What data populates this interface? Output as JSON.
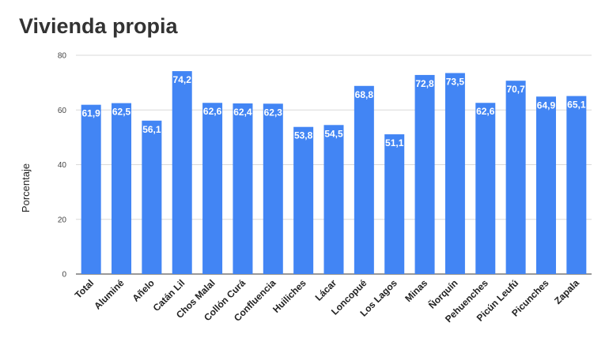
{
  "chart_data": {
    "type": "bar",
    "title": "Vivienda propia",
    "xlabel": "",
    "ylabel": "Porcentaje",
    "ylim": [
      0,
      80
    ],
    "yticks": [
      0,
      20,
      40,
      60,
      80
    ],
    "grid": true,
    "legend": "none",
    "bar_color": "#4285f4",
    "categories": [
      "Total",
      "Aluminé",
      "Añelo",
      "Catán Lil",
      "Chos Malal",
      "Collón Curá",
      "Confluencia",
      "Huiliches",
      "Lácar",
      "Loncopué",
      "Los Lagos",
      "Minas",
      "Ñorquín",
      "Pehuenches",
      "Picún Leufú",
      "Picunches",
      "Zapala"
    ],
    "values": [
      61.9,
      62.5,
      56.1,
      74.2,
      62.6,
      62.4,
      62.3,
      53.8,
      54.5,
      68.8,
      51.1,
      72.8,
      73.5,
      62.6,
      70.7,
      64.9,
      65.1
    ],
    "value_labels": [
      "61,9",
      "62,5",
      "56,1",
      "74,2",
      "62,6",
      "62,4",
      "62,3",
      "53,8",
      "54,5",
      "68,8",
      "51,1",
      "72,8",
      "73,5",
      "62,6",
      "70,7",
      "64,9",
      "65,1"
    ]
  }
}
